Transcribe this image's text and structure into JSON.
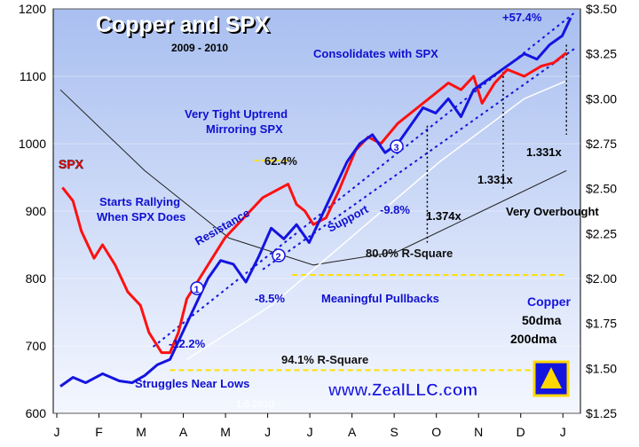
{
  "chart_data": {
    "type": "line",
    "title": "Copper and SPX",
    "subtitle": "2009 - 2010",
    "x_categories": [
      "J",
      "F",
      "M",
      "A",
      "M",
      "J",
      "J",
      "A",
      "S",
      "O",
      "N",
      "D",
      "J"
    ],
    "left_axis": {
      "ticks": [
        600,
        700,
        800,
        900,
        1000,
        1100,
        1200
      ],
      "ylim": [
        600,
        1200
      ]
    },
    "right_axis": {
      "ticks": [
        "$1.25",
        "$1.50",
        "$1.75",
        "$2.00",
        "$2.25",
        "$2.50",
        "$2.75",
        "$3.00",
        "$3.25",
        "$3.50"
      ],
      "ylim": [
        1.25,
        3.5
      ]
    },
    "series": [
      {
        "name": "SPX",
        "color": "#ff1010",
        "axis": "left",
        "points": [
          [
            0.05,
            935
          ],
          [
            0.3,
            915
          ],
          [
            0.5,
            870
          ],
          [
            0.8,
            830
          ],
          [
            1.0,
            850
          ],
          [
            1.3,
            820
          ],
          [
            1.6,
            780
          ],
          [
            1.9,
            760
          ],
          [
            2.1,
            720
          ],
          [
            2.4,
            690
          ],
          [
            2.6,
            690
          ],
          [
            2.8,
            720
          ],
          [
            3.0,
            770
          ],
          [
            3.3,
            800
          ],
          [
            3.6,
            830
          ],
          [
            3.9,
            860
          ],
          [
            4.2,
            880
          ],
          [
            4.5,
            900
          ],
          [
            4.8,
            920
          ],
          [
            5.1,
            930
          ],
          [
            5.4,
            940
          ],
          [
            5.6,
            910
          ],
          [
            5.8,
            900
          ],
          [
            6.0,
            880
          ],
          [
            6.3,
            890
          ],
          [
            6.6,
            930
          ],
          [
            7.0,
            990
          ],
          [
            7.3,
            1010
          ],
          [
            7.6,
            1000
          ],
          [
            8.0,
            1030
          ],
          [
            8.4,
            1050
          ],
          [
            8.8,
            1070
          ],
          [
            9.2,
            1090
          ],
          [
            9.5,
            1080
          ],
          [
            9.8,
            1100
          ],
          [
            10.0,
            1060
          ],
          [
            10.3,
            1090
          ],
          [
            10.6,
            1110
          ],
          [
            11.0,
            1100
          ],
          [
            11.4,
            1115
          ],
          [
            11.7,
            1120
          ],
          [
            12.0,
            1135
          ]
        ]
      },
      {
        "name": "Copper",
        "color": "#1414e0",
        "axis": "right",
        "points": [
          [
            0.0,
            1.4
          ],
          [
            0.3,
            1.45
          ],
          [
            0.6,
            1.42
          ],
          [
            1.0,
            1.47
          ],
          [
            1.4,
            1.43
          ],
          [
            1.7,
            1.42
          ],
          [
            2.0,
            1.46
          ],
          [
            2.3,
            1.52
          ],
          [
            2.6,
            1.55
          ],
          [
            2.9,
            1.7
          ],
          [
            3.2,
            1.85
          ],
          [
            3.5,
            2.0
          ],
          [
            3.8,
            2.1
          ],
          [
            4.1,
            2.08
          ],
          [
            4.4,
            1.98
          ],
          [
            4.7,
            2.12
          ],
          [
            5.0,
            2.28
          ],
          [
            5.3,
            2.22
          ],
          [
            5.6,
            2.3
          ],
          [
            5.9,
            2.2
          ],
          [
            6.2,
            2.35
          ],
          [
            6.5,
            2.5
          ],
          [
            6.8,
            2.65
          ],
          [
            7.1,
            2.75
          ],
          [
            7.4,
            2.8
          ],
          [
            7.7,
            2.7
          ],
          [
            8.0,
            2.75
          ],
          [
            8.3,
            2.85
          ],
          [
            8.6,
            2.95
          ],
          [
            8.9,
            2.92
          ],
          [
            9.2,
            3.0
          ],
          [
            9.5,
            2.9
          ],
          [
            9.8,
            3.05
          ],
          [
            10.1,
            3.1
          ],
          [
            10.4,
            3.15
          ],
          [
            10.7,
            3.2
          ],
          [
            11.0,
            3.25
          ],
          [
            11.3,
            3.22
          ],
          [
            11.6,
            3.3
          ],
          [
            11.9,
            3.35
          ],
          [
            12.1,
            3.45
          ]
        ]
      }
    ],
    "labels": {
      "spx": "SPX",
      "copper": "Copper",
      "ma50": "50dma",
      "ma200": "200dma",
      "website": "www.ZealLLC.com",
      "date_stamp": "1.6.2010"
    },
    "annotations": {
      "pct_574": "+57.4%",
      "consolidates": "Consolidates with SPX",
      "tight_1": "Very Tight Uptrend",
      "tight_2": "Mirroring SPX",
      "pct_624": "62.4%",
      "starts_1": "Starts Rallying",
      "starts_2": "When SPX Does",
      "resistance": "Resistance",
      "support": "Support",
      "pct_98": "-9.8%",
      "x1374": "1.374x",
      "x1331a": "1.331x",
      "x1331b": "1.331x",
      "overbought": "Very Overbought",
      "r2_80": "80.0% R-Square",
      "pct_85": "-8.5%",
      "pullbacks": "Meaningful Pullbacks",
      "pct_122": "-12.2%",
      "r2_941": "94.1% R-Square",
      "struggles": "Struggles Near Lows",
      "n1": "1",
      "n2": "2",
      "n3": "3"
    }
  }
}
